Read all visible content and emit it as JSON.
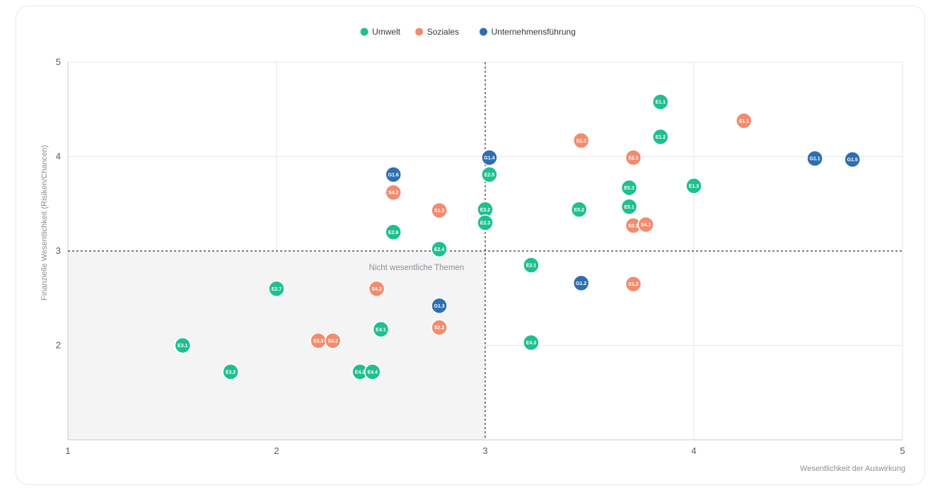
{
  "chart_data": {
    "type": "scatter",
    "xlabel": "Wesentlichkeit der Auswirkung",
    "ylabel": "Finanzielle Wesentlichkeit (Risiken/Chancen)",
    "xlim": [
      1,
      5
    ],
    "ylim": [
      1,
      5
    ],
    "x_ticks": [
      1,
      2,
      3,
      4,
      5
    ],
    "y_ticks": [
      2,
      3,
      4,
      5
    ],
    "grid": true,
    "threshold": {
      "x": 3,
      "y": 3
    },
    "zone_label": "Nicht wesentliche Themen",
    "legend_position": "top-center",
    "series": [
      {
        "name": "Umwelt",
        "color": "#1fbf8f",
        "points": [
          {
            "label": "E1.1",
            "x": 3.84,
            "y": 4.58
          },
          {
            "label": "E1.2",
            "x": 3.84,
            "y": 4.21
          },
          {
            "label": "E1.3",
            "x": 4.0,
            "y": 3.69
          },
          {
            "label": "E5.3",
            "x": 3.69,
            "y": 3.67
          },
          {
            "label": "E5.1",
            "x": 3.69,
            "y": 3.47
          },
          {
            "label": "E5.2",
            "x": 3.45,
            "y": 3.44
          },
          {
            "label": "E2.5",
            "x": 3.02,
            "y": 3.81
          },
          {
            "label": "E2.2",
            "x": 3.0,
            "y": 3.44
          },
          {
            "label": "E2.3",
            "x": 3.0,
            "y": 3.3
          },
          {
            "label": "E2.6",
            "x": 2.56,
            "y": 3.2
          },
          {
            "label": "E2.4",
            "x": 2.78,
            "y": 3.02
          },
          {
            "label": "E2.1",
            "x": 3.22,
            "y": 2.85
          },
          {
            "label": "E2.7",
            "x": 2.0,
            "y": 2.6
          },
          {
            "label": "E4.1",
            "x": 2.5,
            "y": 2.17
          },
          {
            "label": "E4.3",
            "x": 3.22,
            "y": 2.03
          },
          {
            "label": "E3.1",
            "x": 1.55,
            "y": 2.0
          },
          {
            "label": "E3.2",
            "x": 1.78,
            "y": 1.72
          },
          {
            "label": "E4.2",
            "x": 2.4,
            "y": 1.72
          },
          {
            "label": "E4.4",
            "x": 2.46,
            "y": 1.72
          }
        ]
      },
      {
        "name": "Soziales",
        "color": "#f28c6e",
        "points": [
          {
            "label": "S1.1",
            "x": 4.24,
            "y": 4.38
          },
          {
            "label": "S1.3",
            "x": 3.46,
            "y": 4.17
          },
          {
            "label": "S2.1",
            "x": 3.71,
            "y": 3.99
          },
          {
            "label": "S4.2",
            "x": 2.56,
            "y": 3.62
          },
          {
            "label": "S1.3",
            "x": 2.78,
            "y": 3.43
          },
          {
            "label": "S3.1",
            "x": 3.71,
            "y": 3.27
          },
          {
            "label": "S4.1",
            "x": 3.77,
            "y": 3.28
          },
          {
            "label": "S1.2",
            "x": 3.71,
            "y": 2.65
          },
          {
            "label": "S4.2",
            "x": 2.48,
            "y": 2.6
          },
          {
            "label": "S2.2",
            "x": 2.78,
            "y": 2.19
          },
          {
            "label": "S3.3",
            "x": 2.2,
            "y": 2.05
          },
          {
            "label": "S3.2",
            "x": 2.27,
            "y": 2.05
          }
        ]
      },
      {
        "name": "Unternehmensführung",
        "color": "#2f6fb1",
        "points": [
          {
            "label": "G1.1",
            "x": 4.58,
            "y": 3.98
          },
          {
            "label": "G1.5",
            "x": 4.76,
            "y": 3.97
          },
          {
            "label": "G1.4",
            "x": 3.02,
            "y": 3.99
          },
          {
            "label": "G1.6",
            "x": 2.56,
            "y": 3.81
          },
          {
            "label": "G1.2",
            "x": 3.46,
            "y": 2.66
          },
          {
            "label": "G1.3",
            "x": 2.78,
            "y": 2.42
          }
        ]
      }
    ]
  }
}
